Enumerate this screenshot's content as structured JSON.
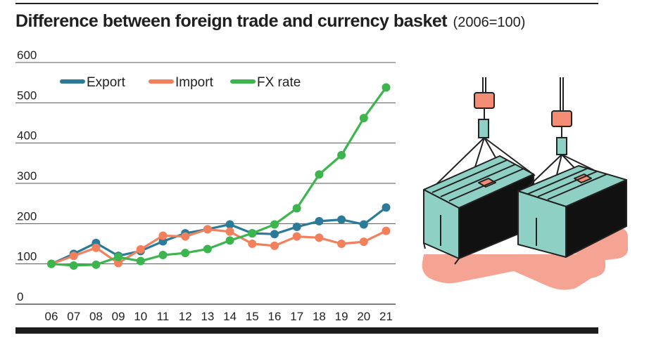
{
  "header": {
    "title": "Difference between foreign trade and currency basket",
    "subtitle": "(2006=100)"
  },
  "colors": {
    "export": "#2a7a98",
    "import": "#f2805c",
    "fx_rate": "#3cb54e",
    "grid": "#555555",
    "illustration_shadow": "#f5a393"
  },
  "illustration": {
    "icon": "cargo-containers-on-crane-hooks"
  },
  "chart_data": {
    "type": "line",
    "title": "Difference between foreign trade and currency basket",
    "subtitle": "(2006=100)",
    "xlabel": "",
    "ylabel": "",
    "categories": [
      "06",
      "07",
      "08",
      "09",
      "10",
      "11",
      "12",
      "13",
      "14",
      "15",
      "16",
      "17",
      "18",
      "19",
      "20",
      "21"
    ],
    "ylim": [
      0,
      600
    ],
    "yticks": [
      0,
      100,
      200,
      300,
      400,
      500,
      600
    ],
    "grid": true,
    "legend_position": "top-left",
    "series": [
      {
        "name": "Export",
        "color": "#2a7a98",
        "values": [
          100,
          125,
          152,
          120,
          132,
          156,
          176,
          186,
          198,
          176,
          174,
          192,
          206,
          210,
          198,
          240
        ]
      },
      {
        "name": "Import",
        "color": "#f2805c",
        "values": [
          100,
          120,
          140,
          102,
          136,
          170,
          168,
          186,
          180,
          150,
          145,
          168,
          165,
          150,
          155,
          182
        ]
      },
      {
        "name": "FX rate",
        "color": "#3cb54e",
        "values": [
          100,
          96,
          98,
          117,
          107,
          122,
          127,
          137,
          158,
          176,
          198,
          238,
          322,
          370,
          462,
          538
        ]
      }
    ]
  }
}
